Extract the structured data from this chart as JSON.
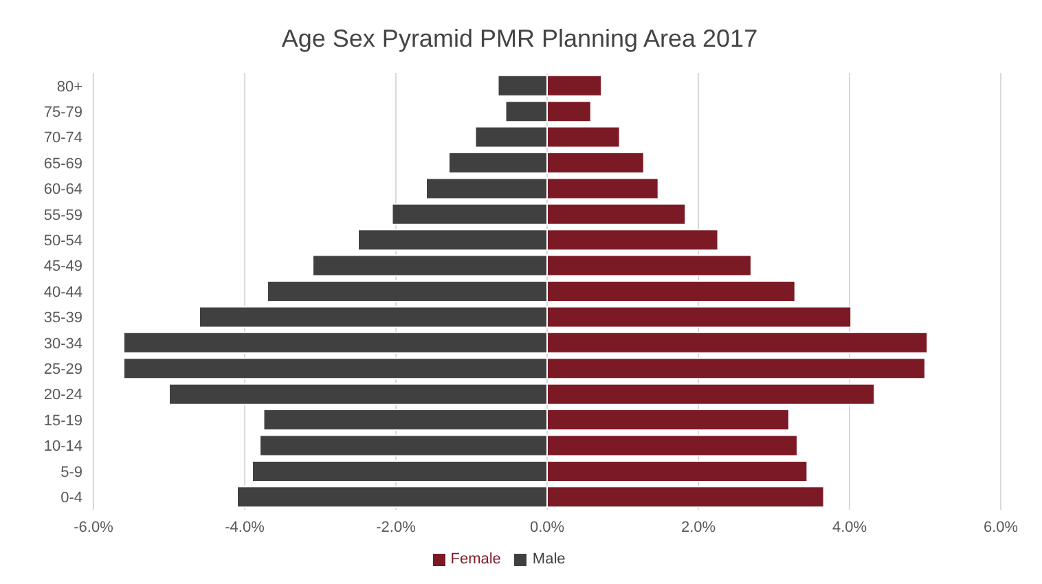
{
  "chart_data": {
    "type": "bar",
    "orientation": "horizontal",
    "stacked": true,
    "title": "Age Sex Pyramid PMR Planning Area 2017",
    "categories": [
      "80+",
      "75-79",
      "70-74",
      "65-69",
      "60-64",
      "55-59",
      "50-54",
      "45-49",
      "40-44",
      "35-39",
      "30-34",
      "25-29",
      "20-24",
      "15-19",
      "10-14",
      "5-9",
      "0-4"
    ],
    "series": [
      {
        "name": "Male",
        "color": "#404040",
        "values": [
          -0.65,
          -0.55,
          -0.95,
          -1.3,
          -1.6,
          -2.05,
          -2.5,
          -3.1,
          -3.7,
          -4.6,
          -5.6,
          -5.6,
          -5.0,
          -3.75,
          -3.8,
          -3.9,
          -4.1
        ]
      },
      {
        "name": "Female",
        "color": "#7b1a25",
        "values": [
          0.72,
          0.58,
          0.96,
          1.28,
          1.47,
          1.83,
          2.26,
          2.7,
          3.28,
          4.02,
          5.03,
          5.0,
          4.33,
          3.2,
          3.31,
          3.44,
          3.66
        ]
      }
    ],
    "xlim": [
      -6,
      6
    ],
    "xticks": [
      {
        "value": -6,
        "label": "-6.0%"
      },
      {
        "value": -4,
        "label": "-4.0%"
      },
      {
        "value": -2,
        "label": "-2.0%"
      },
      {
        "value": 0,
        "label": "0.0%"
      },
      {
        "value": 2,
        "label": "2.0%"
      },
      {
        "value": 4,
        "label": "4.0%"
      },
      {
        "value": 6,
        "label": "6.0%"
      }
    ],
    "grid": "x",
    "legend": "bottom"
  }
}
